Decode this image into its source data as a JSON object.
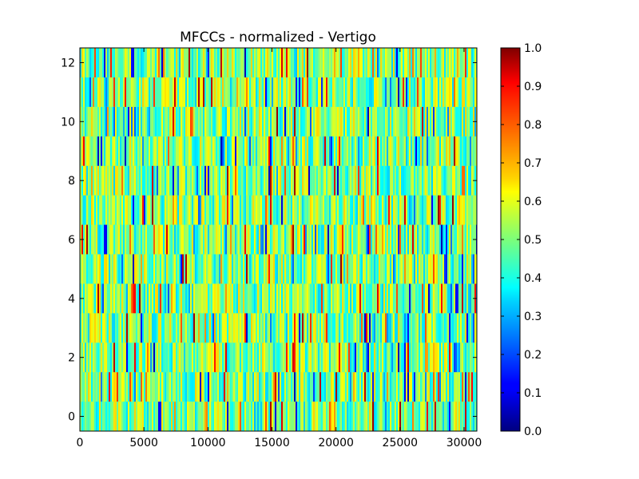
{
  "chart_data": {
    "type": "heatmap",
    "title": "MFCCs - normalized - Vertigo",
    "xlabel": "",
    "ylabel": "",
    "xlim": [
      0,
      31000
    ],
    "ylim": [
      -0.5,
      12.5
    ],
    "x_ticks": [
      0,
      5000,
      10000,
      15000,
      20000,
      25000,
      30000
    ],
    "x_tick_labels": [
      "0",
      "5000",
      "10000",
      "15000",
      "20000",
      "25000",
      "30000"
    ],
    "y_ticks": [
      0,
      2,
      4,
      6,
      8,
      10,
      12
    ],
    "y_tick_labels": [
      "0",
      "2",
      "4",
      "6",
      "8",
      "10",
      "12"
    ],
    "rows": 13,
    "frames": 31000,
    "value_range": [
      0.0,
      1.0
    ],
    "typical_value": 0.5,
    "colormap": "jet",
    "colorbar": {
      "ticks": [
        0.0,
        0.1,
        0.2,
        0.3,
        0.4,
        0.5,
        0.6,
        0.7,
        0.8,
        0.9,
        1.0
      ],
      "tick_labels": [
        "0.0",
        "0.1",
        "0.2",
        "0.3",
        "0.4",
        "0.5",
        "0.6",
        "0.7",
        "0.8",
        "0.9",
        "1.0"
      ]
    },
    "grid": false,
    "legend": "colorbar right"
  }
}
